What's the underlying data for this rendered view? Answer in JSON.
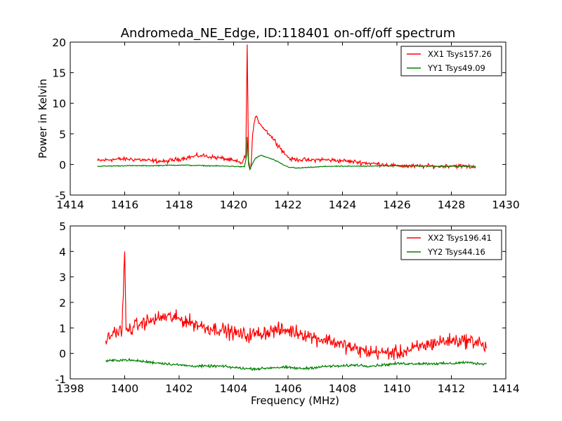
{
  "title": "Andromeda_NE_Edge, ID:118401 on-off/off spectrum",
  "chart_data": [
    {
      "type": "line",
      "title": "Andromeda_NE_Edge, ID:118401 on-off/off spectrum",
      "xlabel": "",
      "ylabel": "Power in Kelvin",
      "xlim": [
        1414,
        1430
      ],
      "ylim": [
        -5,
        20
      ],
      "xticks": [
        1414,
        1416,
        1418,
        1420,
        1422,
        1424,
        1426,
        1428,
        1430
      ],
      "yticks": [
        -5,
        0,
        5,
        10,
        15,
        20
      ],
      "grid": false,
      "legend": "top-right",
      "series": [
        {
          "name": "XX1 Tsys157.26",
          "color": "#ff0000",
          "x": [
            1415.0,
            1415.5,
            1416.0,
            1416.5,
            1417.0,
            1417.5,
            1418.0,
            1418.5,
            1418.8,
            1419.2,
            1419.6,
            1420.0,
            1420.3,
            1420.45,
            1420.5,
            1420.55,
            1420.6,
            1420.65,
            1420.7,
            1420.8,
            1420.9,
            1421.1,
            1421.3,
            1421.5,
            1421.7,
            1421.9,
            1422.1,
            1422.4,
            1422.8,
            1423.2,
            1423.6,
            1424.0,
            1424.5,
            1425.0,
            1425.5,
            1426.0,
            1426.5,
            1427.0,
            1427.5,
            1428.0,
            1428.5,
            1428.9
          ],
          "y": [
            0.6,
            0.8,
            0.9,
            0.8,
            0.6,
            0.5,
            0.9,
            1.3,
            1.5,
            1.2,
            1.0,
            0.6,
            0.2,
            1.5,
            19.6,
            0.5,
            -0.8,
            0.3,
            5.0,
            7.8,
            7.2,
            6.0,
            5.0,
            4.0,
            2.8,
            1.6,
            0.9,
            0.8,
            0.7,
            0.8,
            0.7,
            0.6,
            0.4,
            0.2,
            0.0,
            -0.2,
            -0.3,
            -0.3,
            -0.3,
            -0.2,
            -0.3,
            -0.5
          ]
        },
        {
          "name": "YY1 Tsys49.09",
          "color": "#008000",
          "x": [
            1415.0,
            1416.0,
            1417.0,
            1418.0,
            1419.0,
            1420.0,
            1420.4,
            1420.48,
            1420.5,
            1420.55,
            1420.6,
            1420.7,
            1420.8,
            1421.0,
            1421.2,
            1421.4,
            1421.6,
            1421.8,
            1422.0,
            1422.3,
            1422.7,
            1423.5,
            1424.5,
            1425.5,
            1426.5,
            1427.5,
            1428.5,
            1428.9
          ],
          "y": [
            -0.3,
            -0.2,
            -0.2,
            -0.1,
            -0.2,
            -0.3,
            -0.4,
            1.5,
            4.5,
            0.0,
            -0.8,
            0.2,
            1.0,
            1.5,
            1.2,
            0.9,
            0.5,
            0.0,
            -0.4,
            -0.6,
            -0.5,
            -0.3,
            -0.3,
            -0.2,
            -0.2,
            -0.3,
            -0.3,
            -0.3
          ]
        }
      ]
    },
    {
      "type": "line",
      "title": "",
      "xlabel": "Frequency (MHz)",
      "ylabel": "",
      "xlim": [
        1398,
        1414
      ],
      "ylim": [
        -1,
        5
      ],
      "xticks": [
        1398,
        1400,
        1402,
        1404,
        1406,
        1408,
        1410,
        1412,
        1414
      ],
      "yticks": [
        -1,
        0,
        1,
        2,
        3,
        4,
        5
      ],
      "grid": false,
      "legend": "top-right",
      "series": [
        {
          "name": "XX2 Tsys196.41",
          "color": "#ff0000",
          "x": [
            1399.3,
            1399.6,
            1399.9,
            1400.0,
            1400.05,
            1400.3,
            1400.6,
            1401.0,
            1401.5,
            1402.0,
            1402.5,
            1403.0,
            1403.5,
            1404.0,
            1404.5,
            1405.0,
            1405.5,
            1406.0,
            1406.5,
            1407.0,
            1407.5,
            1408.0,
            1408.5,
            1409.0,
            1409.5,
            1410.0,
            1410.5,
            1411.0,
            1411.5,
            1412.0,
            1412.5,
            1413.0,
            1413.3
          ],
          "y": [
            0.5,
            0.8,
            0.9,
            4.0,
            0.9,
            1.0,
            1.2,
            1.3,
            1.45,
            1.35,
            1.2,
            1.0,
            0.95,
            0.8,
            0.7,
            0.8,
            0.9,
            0.9,
            0.8,
            0.6,
            0.5,
            0.35,
            0.15,
            0.05,
            0.05,
            0.0,
            0.15,
            0.3,
            0.45,
            0.5,
            0.5,
            0.45,
            0.2
          ]
        },
        {
          "name": "YY2 Tsys44.16",
          "color": "#008000",
          "x": [
            1399.3,
            1400.0,
            1400.5,
            1401.0,
            1401.5,
            1402.0,
            1402.5,
            1403.0,
            1403.5,
            1404.0,
            1404.5,
            1405.0,
            1405.5,
            1406.0,
            1406.5,
            1407.0,
            1407.5,
            1408.0,
            1408.5,
            1409.0,
            1409.5,
            1410.0,
            1410.5,
            1411.0,
            1411.5,
            1412.0,
            1412.5,
            1413.0,
            1413.3
          ],
          "y": [
            -0.3,
            -0.25,
            -0.3,
            -0.35,
            -0.4,
            -0.45,
            -0.5,
            -0.5,
            -0.5,
            -0.55,
            -0.6,
            -0.6,
            -0.55,
            -0.55,
            -0.6,
            -0.55,
            -0.5,
            -0.5,
            -0.45,
            -0.5,
            -0.45,
            -0.4,
            -0.4,
            -0.4,
            -0.4,
            -0.4,
            -0.35,
            -0.4,
            -0.4
          ]
        }
      ]
    }
  ]
}
